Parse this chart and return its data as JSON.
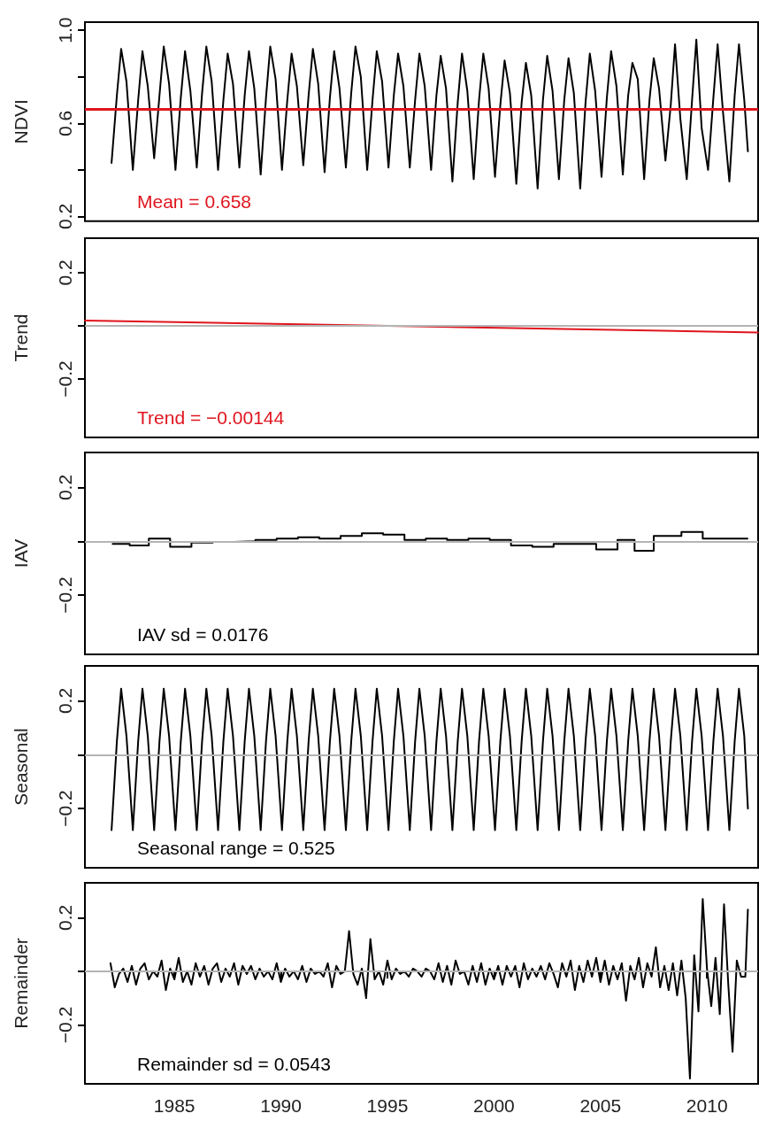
{
  "chart_data": [
    {
      "type": "line",
      "ylabel": "NDVI",
      "xlim": [
        1980.8,
        2012.4
      ],
      "ylim": [
        0.18,
        1.035
      ],
      "yticks": [
        {
          "value": 0.2,
          "label": "0.2"
        },
        {
          "value": 0.4,
          "label": null
        },
        {
          "value": 0.6,
          "label": "0.6"
        },
        {
          "value": 0.8,
          "label": null
        },
        {
          "value": 1,
          "label": "1.0"
        }
      ],
      "tick_labels": "y",
      "annotations": [
        "Mean = 0.658"
      ],
      "ref_lines": [
        {
          "axis": "y",
          "value": 0.658,
          "color": "#e0141e"
        }
      ],
      "series": [
        {
          "color": "#000000",
          "x": [
            1982.05,
            1982.3,
            1982.5,
            1982.75,
            1983.05,
            1983.3,
            1983.5,
            1983.75,
            1984.05,
            1984.3,
            1984.5,
            1984.75,
            1985.05,
            1985.3,
            1985.5,
            1985.75,
            1986.05,
            1986.3,
            1986.5,
            1986.75,
            1987.05,
            1987.3,
            1987.5,
            1987.75,
            1988.05,
            1988.3,
            1988.5,
            1988.75,
            1989.05,
            1989.3,
            1989.5,
            1989.75,
            1990.05,
            1990.3,
            1990.5,
            1990.75,
            1991.05,
            1991.3,
            1991.5,
            1991.75,
            1992.05,
            1992.3,
            1992.5,
            1992.75,
            1993.05,
            1993.3,
            1993.5,
            1993.75,
            1994.05,
            1994.3,
            1994.5,
            1994.75,
            1995.05,
            1995.3,
            1995.5,
            1995.75,
            1996.05,
            1996.3,
            1996.5,
            1996.75,
            1997.05,
            1997.3,
            1997.5,
            1997.75,
            1998.05,
            1998.3,
            1998.5,
            1998.75,
            1999.05,
            1999.3,
            1999.5,
            1999.75,
            2000.05,
            2000.3,
            2000.5,
            2000.75,
            2001.05,
            2001.3,
            2001.5,
            2001.75,
            2002.05,
            2002.3,
            2002.5,
            2002.75,
            2003.05,
            2003.3,
            2003.5,
            2003.75,
            2004.05,
            2004.3,
            2004.5,
            2004.75,
            2005.05,
            2005.3,
            2005.5,
            2005.75,
            2006.05,
            2006.3,
            2006.5,
            2006.75,
            2007.05,
            2007.3,
            2007.5,
            2007.75,
            2008.05,
            2008.3,
            2008.5,
            2008.75,
            2009.05,
            2009.3,
            2009.5,
            2009.75,
            2010.05,
            2010.3,
            2010.5,
            2010.75,
            2011.05,
            2011.3,
            2011.5,
            2011.75,
            2011.92
          ],
          "values": [
            0.43,
            0.72,
            0.92,
            0.78,
            0.4,
            0.7,
            0.91,
            0.76,
            0.45,
            0.72,
            0.93,
            0.77,
            0.4,
            0.71,
            0.91,
            0.74,
            0.41,
            0.73,
            0.93,
            0.78,
            0.4,
            0.7,
            0.9,
            0.77,
            0.41,
            0.72,
            0.91,
            0.75,
            0.38,
            0.71,
            0.93,
            0.79,
            0.4,
            0.7,
            0.9,
            0.76,
            0.42,
            0.72,
            0.92,
            0.77,
            0.39,
            0.71,
            0.91,
            0.75,
            0.41,
            0.73,
            0.93,
            0.8,
            0.4,
            0.7,
            0.91,
            0.78,
            0.41,
            0.72,
            0.9,
            0.76,
            0.41,
            0.7,
            0.9,
            0.76,
            0.4,
            0.72,
            0.89,
            0.75,
            0.35,
            0.69,
            0.9,
            0.74,
            0.36,
            0.7,
            0.9,
            0.75,
            0.37,
            0.68,
            0.87,
            0.73,
            0.34,
            0.69,
            0.86,
            0.72,
            0.32,
            0.7,
            0.89,
            0.74,
            0.36,
            0.7,
            0.88,
            0.73,
            0.32,
            0.69,
            0.9,
            0.74,
            0.37,
            0.71,
            0.91,
            0.76,
            0.38,
            0.72,
            0.86,
            0.79,
            0.36,
            0.7,
            0.88,
            0.75,
            0.44,
            0.68,
            0.94,
            0.62,
            0.36,
            0.7,
            0.96,
            0.58,
            0.4,
            0.71,
            0.94,
            0.65,
            0.35,
            0.72,
            0.94,
            0.7,
            0.48
          ]
        }
      ]
    },
    {
      "type": "line",
      "ylabel": "Trend",
      "xlim": [
        1980.8,
        2012.4
      ],
      "ylim": [
        -0.42,
        0.33
      ],
      "yticks": [
        {
          "value": -0.2,
          "label": "−0.2"
        },
        {
          "value": 0,
          "label": null
        },
        {
          "value": 0.2,
          "label": "0.2"
        }
      ],
      "tick_labels": "y",
      "annotations": [
        "Trend = −0.00144"
      ],
      "ref_lines": [
        {
          "axis": "y",
          "value": 0,
          "color": "#b4b4b4"
        }
      ],
      "series": [
        {
          "color": "#e0141e",
          "x": [
            1980.8,
            2012.4
          ],
          "values": [
            0.02,
            -0.025
          ]
        }
      ]
    },
    {
      "type": "step",
      "ylabel": "IAV",
      "xlim": [
        1980.8,
        2012.4
      ],
      "ylim": [
        -0.42,
        0.33
      ],
      "yticks": [
        {
          "value": -0.2,
          "label": "−0.2"
        },
        {
          "value": 0,
          "label": null
        },
        {
          "value": 0.2,
          "label": "0.2"
        }
      ],
      "tick_labels": "y",
      "annotations": [
        "IAV sd = 0.0176"
      ],
      "ref_lines": [
        {
          "axis": "y",
          "value": 0,
          "color": "#b4b4b4"
        }
      ],
      "series": [
        {
          "color": "#000000",
          "x": [
            1982.1,
            1982.9,
            1983.8,
            1984.8,
            1985.8,
            1986.8,
            1987.8,
            1988.8,
            1989.8,
            1990.8,
            1991.8,
            1992.8,
            1993.8,
            1994.8,
            1995.8,
            1996.8,
            1997.8,
            1998.8,
            1999.8,
            2000.8,
            2001.8,
            2002.8,
            2003.8,
            2004.8,
            2005.8,
            2006.6,
            2007.5,
            2008.8,
            2009.8,
            2011.9
          ],
          "values": [
            -0.01,
            -0.015,
            0.01,
            -0.02,
            -0.005,
            -0.002,
            0.0,
            0.005,
            0.01,
            0.015,
            0.01,
            0.02,
            0.03,
            0.025,
            0.005,
            0.01,
            0.005,
            0.01,
            0.005,
            -0.015,
            -0.02,
            -0.01,
            -0.01,
            -0.03,
            0.005,
            -0.035,
            0.02,
            0.035,
            0.01,
            0.01
          ]
        }
      ]
    },
    {
      "type": "line",
      "ylabel": "Seasonal",
      "xlim": [
        1980.8,
        2012.4
      ],
      "ylim": [
        -0.42,
        0.33
      ],
      "yticks": [
        {
          "value": -0.2,
          "label": "−0.2"
        },
        {
          "value": 0,
          "label": null
        },
        {
          "value": 0.2,
          "label": "0.2"
        }
      ],
      "tick_labels": "y",
      "annotations": [
        "Seasonal range = 0.525"
      ],
      "ref_lines": [
        {
          "axis": "y",
          "value": 0,
          "color": "#b4b4b4"
        }
      ],
      "series": [
        {
          "color": "#000000",
          "x": [
            1982.05,
            1982.3,
            1982.5,
            1982.75,
            1983.05,
            1983.3,
            1983.5,
            1983.75,
            1984.05,
            1984.3,
            1984.5,
            1984.75,
            1985.05,
            1985.3,
            1985.5,
            1985.75,
            1986.05,
            1986.3,
            1986.5,
            1986.75,
            1987.05,
            1987.3,
            1987.5,
            1987.75,
            1988.05,
            1988.3,
            1988.5,
            1988.75,
            1989.05,
            1989.3,
            1989.5,
            1989.75,
            1990.05,
            1990.3,
            1990.5,
            1990.75,
            1991.05,
            1991.3,
            1991.5,
            1991.75,
            1992.05,
            1992.3,
            1992.5,
            1992.75,
            1993.05,
            1993.3,
            1993.5,
            1993.75,
            1994.05,
            1994.3,
            1994.5,
            1994.75,
            1995.05,
            1995.3,
            1995.5,
            1995.75,
            1996.05,
            1996.3,
            1996.5,
            1996.75,
            1997.05,
            1997.3,
            1997.5,
            1997.75,
            1998.05,
            1998.3,
            1998.5,
            1998.75,
            1999.05,
            1999.3,
            1999.5,
            1999.75,
            2000.05,
            2000.3,
            2000.5,
            2000.75,
            2001.05,
            2001.3,
            2001.5,
            2001.75,
            2002.05,
            2002.3,
            2002.5,
            2002.75,
            2003.05,
            2003.3,
            2003.5,
            2003.75,
            2004.05,
            2004.3,
            2004.5,
            2004.75,
            2005.05,
            2005.3,
            2005.5,
            2005.75,
            2006.05,
            2006.3,
            2006.5,
            2006.75,
            2007.05,
            2007.3,
            2007.5,
            2007.75,
            2008.05,
            2008.3,
            2008.5,
            2008.75,
            2009.05,
            2009.3,
            2009.5,
            2009.75,
            2010.05,
            2010.3,
            2010.5,
            2010.75,
            2011.05,
            2011.3,
            2011.5,
            2011.75,
            2011.92
          ],
          "values": [
            -0.28,
            0.05,
            0.245,
            0.07,
            -0.28,
            0.05,
            0.245,
            0.07,
            -0.28,
            0.05,
            0.245,
            0.07,
            -0.28,
            0.05,
            0.245,
            0.07,
            -0.28,
            0.05,
            0.245,
            0.07,
            -0.28,
            0.05,
            0.245,
            0.07,
            -0.28,
            0.05,
            0.245,
            0.07,
            -0.28,
            0.05,
            0.245,
            0.07,
            -0.28,
            0.05,
            0.245,
            0.07,
            -0.28,
            0.05,
            0.245,
            0.07,
            -0.28,
            0.05,
            0.245,
            0.07,
            -0.28,
            0.05,
            0.245,
            0.07,
            -0.28,
            0.05,
            0.245,
            0.07,
            -0.28,
            0.05,
            0.245,
            0.07,
            -0.28,
            0.05,
            0.245,
            0.07,
            -0.28,
            0.05,
            0.245,
            0.07,
            -0.28,
            0.05,
            0.245,
            0.07,
            -0.28,
            0.05,
            0.245,
            0.07,
            -0.28,
            0.05,
            0.245,
            0.07,
            -0.28,
            0.05,
            0.245,
            0.07,
            -0.28,
            0.05,
            0.245,
            0.07,
            -0.28,
            0.05,
            0.245,
            0.07,
            -0.28,
            0.05,
            0.245,
            0.07,
            -0.28,
            0.05,
            0.245,
            0.07,
            -0.28,
            0.05,
            0.245,
            0.07,
            -0.28,
            0.05,
            0.245,
            0.07,
            -0.28,
            0.05,
            0.245,
            0.07,
            -0.28,
            0.05,
            0.245,
            0.07,
            -0.28,
            0.05,
            0.245,
            0.07,
            -0.28,
            0.05,
            0.245,
            0.07,
            -0.2
          ]
        }
      ]
    },
    {
      "type": "line",
      "ylabel": "Remainder",
      "xlim": [
        1980.8,
        2012.4
      ],
      "ylim": [
        -0.42,
        0.33
      ],
      "xticks": [
        1985,
        1990,
        1995,
        2000,
        2005,
        2010
      ],
      "yticks": [
        {
          "value": -0.2,
          "label": "−0.2"
        },
        {
          "value": 0,
          "label": null
        },
        {
          "value": 0.2,
          "label": "0.2"
        }
      ],
      "annotations": [
        "Remainder sd = 0.0543"
      ],
      "ref_lines": [
        {
          "axis": "y",
          "value": 0,
          "color": "#b4b4b4"
        }
      ],
      "series": [
        {
          "color": "#000000",
          "x": [
            1982.0,
            1982.2,
            1982.4,
            1982.6,
            1982.8,
            1983.0,
            1983.2,
            1983.4,
            1983.6,
            1983.8,
            1984.0,
            1984.2,
            1984.4,
            1984.6,
            1984.8,
            1985.0,
            1985.2,
            1985.4,
            1985.6,
            1985.8,
            1986.0,
            1986.2,
            1986.4,
            1986.6,
            1986.8,
            1987.0,
            1987.2,
            1987.4,
            1987.6,
            1987.8,
            1988.0,
            1988.2,
            1988.4,
            1988.6,
            1988.8,
            1989.0,
            1989.2,
            1989.4,
            1989.6,
            1989.8,
            1990.0,
            1990.2,
            1990.4,
            1990.6,
            1990.8,
            1991.0,
            1991.2,
            1991.4,
            1991.6,
            1991.8,
            1992.0,
            1992.2,
            1992.4,
            1992.6,
            1992.8,
            1993.0,
            1993.2,
            1993.4,
            1993.6,
            1993.8,
            1994.0,
            1994.2,
            1994.4,
            1994.6,
            1994.8,
            1995.0,
            1995.2,
            1995.4,
            1995.6,
            1995.8,
            1996.0,
            1996.2,
            1996.4,
            1996.6,
            1996.8,
            1997.0,
            1997.2,
            1997.4,
            1997.6,
            1997.8,
            1998.0,
            1998.2,
            1998.4,
            1998.6,
            1998.8,
            1999.0,
            1999.2,
            1999.4,
            1999.6,
            1999.8,
            2000.0,
            2000.2,
            2000.4,
            2000.6,
            2000.8,
            2001.0,
            2001.2,
            2001.4,
            2001.6,
            2001.8,
            2002.0,
            2002.2,
            2002.4,
            2002.6,
            2002.8,
            2003.0,
            2003.2,
            2003.4,
            2003.6,
            2003.8,
            2004.0,
            2004.2,
            2004.4,
            2004.6,
            2004.8,
            2005.0,
            2005.2,
            2005.4,
            2005.6,
            2005.8,
            2006.0,
            2006.2,
            2006.4,
            2006.6,
            2006.8,
            2007.0,
            2007.2,
            2007.4,
            2007.6,
            2007.8,
            2008.0,
            2008.2,
            2008.4,
            2008.6,
            2008.8,
            2009.0,
            2009.2,
            2009.4,
            2009.6,
            2009.8,
            2010.0,
            2010.2,
            2010.4,
            2010.6,
            2010.8,
            2011.0,
            2011.2,
            2011.4,
            2011.6,
            2011.8,
            2011.92
          ],
          "values": [
            0.03,
            -0.06,
            -0.01,
            0.01,
            -0.04,
            0.02,
            -0.05,
            0.01,
            0.03,
            -0.03,
            0.0,
            -0.02,
            0.04,
            -0.07,
            0.01,
            -0.03,
            0.05,
            -0.04,
            0.0,
            -0.05,
            0.03,
            -0.02,
            0.02,
            -0.05,
            0.01,
            0.03,
            -0.04,
            0.01,
            -0.02,
            0.03,
            -0.05,
            0.02,
            -0.01,
            0.02,
            -0.03,
            0.01,
            -0.02,
            0.0,
            -0.03,
            0.03,
            -0.04,
            0.01,
            -0.02,
            0.0,
            -0.03,
            0.02,
            -0.04,
            0.01,
            -0.01,
            0.0,
            -0.02,
            0.03,
            -0.06,
            0.02,
            -0.01,
            0.0,
            0.15,
            -0.01,
            -0.05,
            0.01,
            -0.1,
            0.12,
            -0.03,
            0.0,
            -0.05,
            0.04,
            -0.03,
            0.01,
            -0.01,
            0.0,
            -0.02,
            0.01,
            0.0,
            -0.02,
            0.01,
            0.0,
            -0.03,
            0.03,
            -0.04,
            0.02,
            -0.05,
            0.04,
            -0.01,
            0.0,
            -0.05,
            0.02,
            -0.04,
            0.03,
            -0.05,
            0.01,
            -0.03,
            0.02,
            -0.05,
            0.02,
            -0.02,
            0.02,
            -0.06,
            0.03,
            -0.03,
            0.01,
            -0.02,
            0.02,
            -0.03,
            0.03,
            -0.01,
            -0.06,
            0.03,
            -0.02,
            0.04,
            -0.07,
            0.02,
            -0.04,
            0.04,
            -0.02,
            0.05,
            -0.04,
            0.04,
            -0.05,
            0.02,
            -0.03,
            0.03,
            -0.11,
            0.02,
            -0.03,
            0.05,
            -0.06,
            0.03,
            -0.02,
            0.09,
            -0.06,
            0.02,
            -0.07,
            0.03,
            -0.09,
            0.04,
            -0.1,
            -0.4,
            0.06,
            -0.15,
            0.27,
            0.01,
            -0.13,
            0.05,
            -0.16,
            0.25,
            -0.05,
            -0.3,
            0.04,
            -0.02,
            -0.02,
            0.23
          ]
        }
      ]
    }
  ]
}
